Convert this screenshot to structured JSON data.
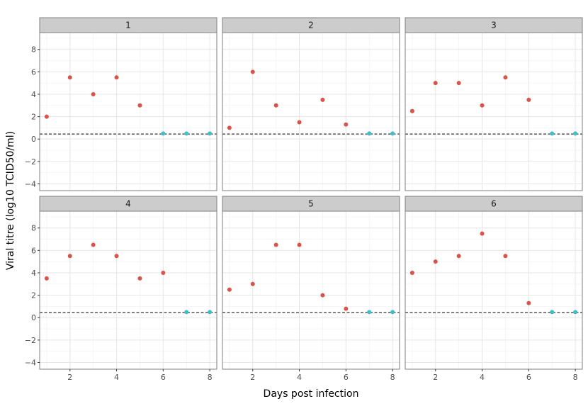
{
  "chart_data": {
    "type": "scatter",
    "xlabel": "Days post infection",
    "ylabel": "Viral titre (log10 TCID50/ml)",
    "xlim": [
      0.7,
      8.3
    ],
    "ylim": [
      -4.6,
      9.5
    ],
    "x_ticks": [
      2,
      4,
      6,
      8
    ],
    "y_ticks": [
      -4,
      -2,
      0,
      2,
      4,
      6,
      8
    ],
    "threshold": 0.45,
    "colors": {
      "detected": "#d9534a",
      "undetected": "#3fbfca"
    },
    "grid": true,
    "legend": "none",
    "panels": [
      {
        "label": "1",
        "points": [
          {
            "x": 1,
            "y": 2.0,
            "group": "detected"
          },
          {
            "x": 2,
            "y": 5.5,
            "group": "detected"
          },
          {
            "x": 3,
            "y": 4.0,
            "group": "detected"
          },
          {
            "x": 4,
            "y": 5.5,
            "group": "detected"
          },
          {
            "x": 5,
            "y": 3.0,
            "group": "detected"
          },
          {
            "x": 6,
            "y": 0.5,
            "group": "undetected"
          },
          {
            "x": 7,
            "y": 0.5,
            "group": "undetected"
          },
          {
            "x": 8,
            "y": 0.5,
            "group": "undetected"
          }
        ]
      },
      {
        "label": "2",
        "points": [
          {
            "x": 1,
            "y": 1.0,
            "group": "detected"
          },
          {
            "x": 2,
            "y": 6.0,
            "group": "detected"
          },
          {
            "x": 3,
            "y": 3.0,
            "group": "detected"
          },
          {
            "x": 4,
            "y": 1.5,
            "group": "detected"
          },
          {
            "x": 5,
            "y": 3.5,
            "group": "detected"
          },
          {
            "x": 6,
            "y": 1.3,
            "group": "detected"
          },
          {
            "x": 7,
            "y": 0.5,
            "group": "undetected"
          },
          {
            "x": 8,
            "y": 0.5,
            "group": "undetected"
          }
        ]
      },
      {
        "label": "3",
        "points": [
          {
            "x": 1,
            "y": 2.5,
            "group": "detected"
          },
          {
            "x": 2,
            "y": 5.0,
            "group": "detected"
          },
          {
            "x": 3,
            "y": 5.0,
            "group": "detected"
          },
          {
            "x": 4,
            "y": 3.0,
            "group": "detected"
          },
          {
            "x": 5,
            "y": 5.5,
            "group": "detected"
          },
          {
            "x": 6,
            "y": 3.5,
            "group": "detected"
          },
          {
            "x": 7,
            "y": 0.5,
            "group": "undetected"
          },
          {
            "x": 8,
            "y": 0.5,
            "group": "undetected"
          }
        ]
      },
      {
        "label": "4",
        "points": [
          {
            "x": 1,
            "y": 3.5,
            "group": "detected"
          },
          {
            "x": 2,
            "y": 5.5,
            "group": "detected"
          },
          {
            "x": 3,
            "y": 6.5,
            "group": "detected"
          },
          {
            "x": 4,
            "y": 5.5,
            "group": "detected"
          },
          {
            "x": 5,
            "y": 3.5,
            "group": "detected"
          },
          {
            "x": 6,
            "y": 4.0,
            "group": "detected"
          },
          {
            "x": 7,
            "y": 0.5,
            "group": "undetected"
          },
          {
            "x": 8,
            "y": 0.5,
            "group": "undetected"
          }
        ]
      },
      {
        "label": "5",
        "points": [
          {
            "x": 1,
            "y": 2.5,
            "group": "detected"
          },
          {
            "x": 2,
            "y": 3.0,
            "group": "detected"
          },
          {
            "x": 3,
            "y": 6.5,
            "group": "detected"
          },
          {
            "x": 4,
            "y": 6.5,
            "group": "detected"
          },
          {
            "x": 5,
            "y": 2.0,
            "group": "detected"
          },
          {
            "x": 6,
            "y": 0.8,
            "group": "detected"
          },
          {
            "x": 7,
            "y": 0.5,
            "group": "undetected"
          },
          {
            "x": 8,
            "y": 0.5,
            "group": "undetected"
          }
        ]
      },
      {
        "label": "6",
        "points": [
          {
            "x": 1,
            "y": 4.0,
            "group": "detected"
          },
          {
            "x": 2,
            "y": 5.0,
            "group": "detected"
          },
          {
            "x": 3,
            "y": 5.5,
            "group": "detected"
          },
          {
            "x": 4,
            "y": 7.5,
            "group": "detected"
          },
          {
            "x": 5,
            "y": 5.5,
            "group": "detected"
          },
          {
            "x": 6,
            "y": 1.3,
            "group": "detected"
          },
          {
            "x": 7,
            "y": 0.5,
            "group": "undetected"
          },
          {
            "x": 8,
            "y": 0.5,
            "group": "undetected"
          }
        ]
      }
    ]
  }
}
